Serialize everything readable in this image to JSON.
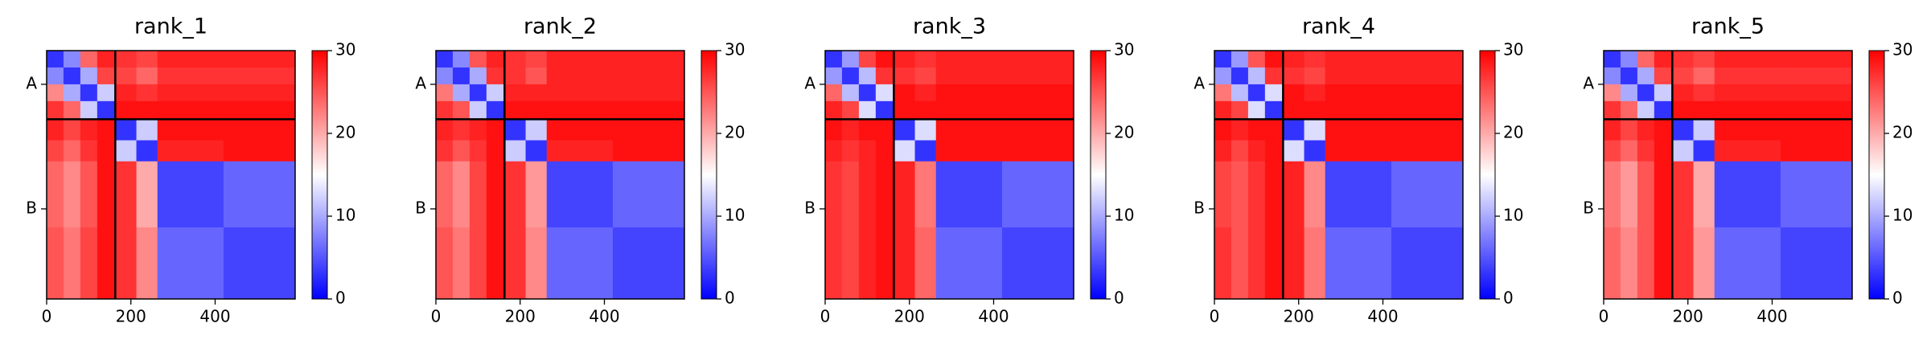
{
  "chart_data": [
    {
      "type": "heatmap",
      "title": "rank_1",
      "colormap": "bwr",
      "x_edges": [
        0,
        40,
        80,
        120,
        163,
        213,
        263,
        420,
        590
      ],
      "y_edges": [
        0,
        40,
        80,
        120,
        163,
        213,
        263,
        420,
        590
      ],
      "values": [
        [
          3,
          8,
          24,
          28,
          27,
          26,
          28,
          28
        ],
        [
          8,
          3,
          10,
          26,
          26,
          24,
          27,
          27
        ],
        [
          22,
          10,
          3,
          12,
          28,
          27,
          28,
          28
        ],
        [
          27,
          24,
          12,
          3,
          29,
          29,
          29,
          29
        ],
        [
          28,
          26,
          28,
          29,
          3,
          12,
          29,
          29
        ],
        [
          26,
          24,
          27,
          29,
          12,
          3,
          28,
          29
        ],
        [
          24,
          22,
          25,
          29,
          27,
          20,
          4,
          6
        ],
        [
          25,
          23,
          26,
          29,
          27,
          22,
          6,
          4
        ]
      ],
      "xlim": [
        0,
        590
      ],
      "ylim": [
        590,
        0
      ],
      "xticks": [
        0,
        200,
        400
      ],
      "yticks": [
        {
          "value": 80,
          "label": "A"
        },
        {
          "value": 376,
          "label": "B"
        }
      ],
      "clim": [
        0,
        30
      ],
      "cticks": [
        0,
        10,
        20,
        30
      ],
      "chain_breaks": [
        163
      ]
    },
    {
      "type": "heatmap",
      "title": "rank_2",
      "colormap": "bwr",
      "x_edges": [
        0,
        40,
        80,
        120,
        163,
        213,
        263,
        420,
        590
      ],
      "y_edges": [
        0,
        40,
        80,
        120,
        163,
        213,
        263,
        420,
        590
      ],
      "values": [
        [
          3,
          8,
          25,
          28,
          27,
          26,
          28,
          28
        ],
        [
          8,
          3,
          10,
          27,
          27,
          25,
          28,
          28
        ],
        [
          23,
          10,
          3,
          12,
          28,
          28,
          28,
          28
        ],
        [
          27,
          25,
          12,
          3,
          29,
          29,
          29,
          29
        ],
        [
          28,
          27,
          28,
          29,
          3,
          12,
          29,
          29
        ],
        [
          27,
          25,
          27,
          29,
          12,
          3,
          28,
          29
        ],
        [
          24,
          22,
          26,
          29,
          27,
          21,
          4,
          6
        ],
        [
          25,
          23,
          26,
          29,
          27,
          22,
          6,
          4
        ]
      ],
      "xlim": [
        0,
        590
      ],
      "ylim": [
        590,
        0
      ],
      "xticks": [
        0,
        200,
        400
      ],
      "yticks": [
        {
          "value": 80,
          "label": "A"
        },
        {
          "value": 376,
          "label": "B"
        }
      ],
      "clim": [
        0,
        30
      ],
      "cticks": [
        0,
        10,
        20,
        30
      ],
      "chain_breaks": [
        163
      ]
    },
    {
      "type": "heatmap",
      "title": "rank_3",
      "colormap": "bwr",
      "x_edges": [
        0,
        40,
        80,
        120,
        163,
        213,
        263,
        420,
        590
      ],
      "y_edges": [
        0,
        40,
        80,
        120,
        163,
        213,
        263,
        420,
        590
      ],
      "values": [
        [
          3,
          9,
          26,
          29,
          28,
          27,
          28,
          28
        ],
        [
          9,
          3,
          11,
          27,
          27,
          26,
          28,
          28
        ],
        [
          24,
          11,
          3,
          13,
          29,
          28,
          29,
          29
        ],
        [
          28,
          26,
          13,
          3,
          29,
          29,
          29,
          29
        ],
        [
          29,
          28,
          29,
          29,
          3,
          13,
          29,
          29
        ],
        [
          28,
          27,
          28,
          29,
          13,
          3,
          29,
          29
        ],
        [
          27,
          26,
          28,
          29,
          28,
          23,
          4,
          6
        ],
        [
          27,
          26,
          28,
          29,
          28,
          24,
          6,
          4
        ]
      ],
      "xlim": [
        0,
        590
      ],
      "ylim": [
        590,
        0
      ],
      "xticks": [
        0,
        200,
        400
      ],
      "yticks": [
        {
          "value": 80,
          "label": "A"
        },
        {
          "value": 376,
          "label": "B"
        }
      ],
      "clim": [
        0,
        30
      ],
      "cticks": [
        0,
        10,
        20,
        30
      ],
      "chain_breaks": [
        163
      ]
    },
    {
      "type": "heatmap",
      "title": "rank_4",
      "colormap": "bwr",
      "x_edges": [
        0,
        40,
        80,
        120,
        163,
        213,
        263,
        420,
        590
      ],
      "y_edges": [
        0,
        40,
        80,
        120,
        163,
        213,
        263,
        420,
        590
      ],
      "values": [
        [
          3,
          9,
          25,
          29,
          28,
          27,
          28,
          28
        ],
        [
          9,
          3,
          11,
          27,
          27,
          26,
          28,
          28
        ],
        [
          23,
          11,
          3,
          13,
          29,
          28,
          29,
          29
        ],
        [
          28,
          26,
          13,
          3,
          29,
          29,
          29,
          29
        ],
        [
          29,
          28,
          29,
          29,
          3,
          13,
          29,
          29
        ],
        [
          28,
          26,
          28,
          29,
          13,
          3,
          29,
          29
        ],
        [
          26,
          25,
          27,
          29,
          28,
          22,
          4,
          6
        ],
        [
          27,
          25,
          27,
          29,
          28,
          23,
          6,
          4
        ]
      ],
      "xlim": [
        0,
        590
      ],
      "ylim": [
        590,
        0
      ],
      "xticks": [
        0,
        200,
        400
      ],
      "yticks": [
        {
          "value": 80,
          "label": "A"
        },
        {
          "value": 376,
          "label": "B"
        }
      ],
      "clim": [
        0,
        30
      ],
      "cticks": [
        0,
        10,
        20,
        30
      ],
      "chain_breaks": [
        163
      ]
    },
    {
      "type": "heatmap",
      "title": "rank_5",
      "colormap": "bwr",
      "x_edges": [
        0,
        40,
        80,
        120,
        163,
        213,
        263,
        420,
        590
      ],
      "y_edges": [
        0,
        40,
        80,
        120,
        163,
        213,
        263,
        420,
        590
      ],
      "values": [
        [
          3,
          8,
          24,
          28,
          27,
          26,
          28,
          28
        ],
        [
          8,
          3,
          10,
          26,
          26,
          24,
          27,
          27
        ],
        [
          22,
          10,
          3,
          12,
          28,
          27,
          28,
          28
        ],
        [
          27,
          24,
          12,
          3,
          29,
          29,
          29,
          29
        ],
        [
          28,
          26,
          28,
          29,
          3,
          12,
          29,
          29
        ],
        [
          26,
          24,
          27,
          29,
          12,
          3,
          28,
          29
        ],
        [
          23,
          21,
          25,
          29,
          27,
          20,
          4,
          6
        ],
        [
          24,
          22,
          25,
          29,
          27,
          21,
          6,
          4
        ]
      ],
      "xlim": [
        0,
        590
      ],
      "ylim": [
        590,
        0
      ],
      "xticks": [
        0,
        200,
        400
      ],
      "yticks": [
        {
          "value": 80,
          "label": "A"
        },
        {
          "value": 376,
          "label": "B"
        }
      ],
      "clim": [
        0,
        30
      ],
      "cticks": [
        0,
        10,
        20,
        30
      ],
      "chain_breaks": [
        163
      ]
    }
  ]
}
